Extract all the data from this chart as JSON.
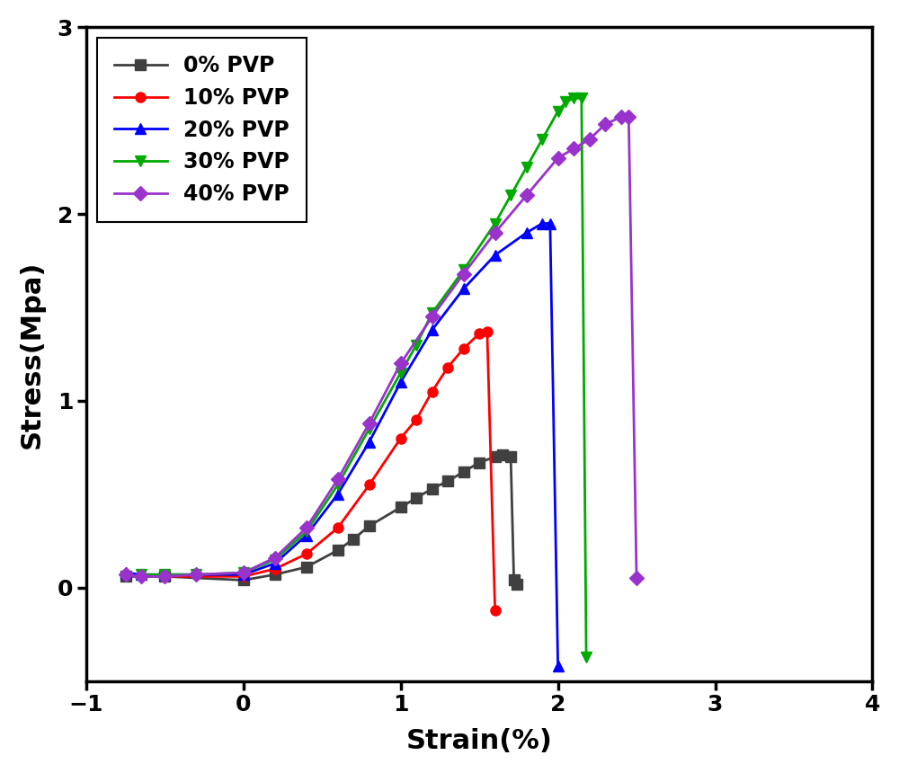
{
  "series": [
    {
      "label": "0% PVP",
      "color": "#404040",
      "marker": "s",
      "markersize": 8,
      "x": [
        -0.75,
        -0.5,
        0.0,
        0.2,
        0.4,
        0.6,
        0.7,
        0.8,
        1.0,
        1.1,
        1.2,
        1.3,
        1.4,
        1.5,
        1.6,
        1.65,
        1.7,
        1.72,
        1.74
      ],
      "y": [
        0.06,
        0.06,
        0.04,
        0.07,
        0.11,
        0.2,
        0.26,
        0.33,
        0.43,
        0.48,
        0.53,
        0.57,
        0.62,
        0.67,
        0.7,
        0.71,
        0.7,
        0.04,
        0.02
      ]
    },
    {
      "label": "10% PVP",
      "color": "#ff0000",
      "marker": "o",
      "markersize": 8,
      "x": [
        -0.5,
        0.0,
        0.2,
        0.4,
        0.6,
        0.8,
        1.0,
        1.1,
        1.2,
        1.3,
        1.4,
        1.5,
        1.55,
        1.6
      ],
      "y": [
        0.06,
        0.06,
        0.1,
        0.18,
        0.32,
        0.55,
        0.8,
        0.9,
        1.05,
        1.18,
        1.28,
        1.36,
        1.37,
        -0.12
      ]
    },
    {
      "label": "20% PVP",
      "color": "#0000ff",
      "marker": "^",
      "markersize": 9,
      "x": [
        -0.75,
        -0.65,
        -0.5,
        0.0,
        0.2,
        0.4,
        0.6,
        0.8,
        1.0,
        1.2,
        1.4,
        1.6,
        1.8,
        1.9,
        1.95,
        2.0
      ],
      "y": [
        0.08,
        0.07,
        0.07,
        0.07,
        0.13,
        0.28,
        0.5,
        0.78,
        1.1,
        1.38,
        1.6,
        1.78,
        1.9,
        1.95,
        1.95,
        -0.42
      ]
    },
    {
      "label": "30% PVP",
      "color": "#00aa00",
      "marker": "v",
      "markersize": 9,
      "x": [
        -0.65,
        -0.5,
        -0.3,
        0.0,
        0.2,
        0.4,
        0.6,
        0.8,
        1.0,
        1.1,
        1.2,
        1.4,
        1.6,
        1.7,
        1.8,
        1.9,
        2.0,
        2.05,
        2.1,
        2.15,
        2.18
      ],
      "y": [
        0.07,
        0.07,
        0.07,
        0.08,
        0.15,
        0.3,
        0.55,
        0.85,
        1.15,
        1.3,
        1.47,
        1.7,
        1.95,
        2.1,
        2.25,
        2.4,
        2.55,
        2.6,
        2.62,
        2.62,
        -0.37
      ]
    },
    {
      "label": "40% PVP",
      "color": "#9933cc",
      "marker": "D",
      "markersize": 8,
      "x": [
        -0.75,
        -0.65,
        -0.5,
        -0.3,
        0.0,
        0.2,
        0.4,
        0.6,
        0.8,
        1.0,
        1.2,
        1.4,
        1.6,
        1.8,
        2.0,
        2.1,
        2.2,
        2.3,
        2.4,
        2.45,
        2.5
      ],
      "y": [
        0.07,
        0.06,
        0.06,
        0.07,
        0.08,
        0.16,
        0.32,
        0.58,
        0.88,
        1.2,
        1.45,
        1.68,
        1.9,
        2.1,
        2.3,
        2.35,
        2.4,
        2.48,
        2.52,
        2.52,
        0.05
      ]
    }
  ],
  "xlabel": "Strain(%)",
  "ylabel": "Stress(Mpa)",
  "xlim": [
    -1,
    4
  ],
  "ylim": [
    -0.5,
    3.0
  ],
  "xticks": [
    -1,
    0,
    1,
    2,
    3,
    4
  ],
  "yticks": [
    0,
    1,
    2,
    3
  ],
  "legend_loc": "upper left",
  "linewidth": 2.0,
  "axis_linewidth": 2.5,
  "tick_fontsize": 18,
  "label_fontsize": 22,
  "legend_fontsize": 17
}
